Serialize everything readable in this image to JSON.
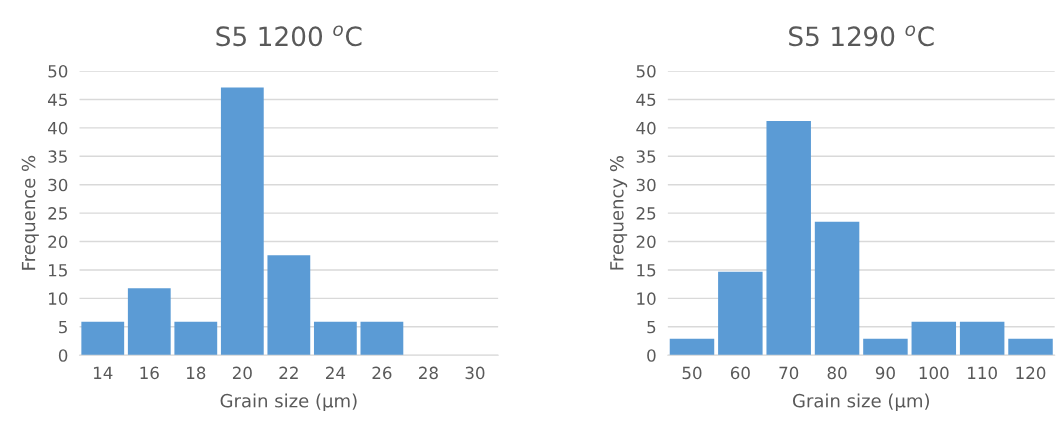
{
  "chart_data": [
    {
      "type": "bar",
      "title": "S5 1200 $^{o}$C",
      "xlabel": "Grain size (µm)",
      "ylabel": "Frequence %",
      "categories": [
        "14",
        "16",
        "18",
        "20",
        "22",
        "24",
        "26",
        "28",
        "30"
      ],
      "values": [
        5.9,
        11.8,
        5.9,
        47.1,
        17.6,
        5.9,
        5.9,
        0,
        0
      ],
      "color": "#5b9bd5",
      "ylim": [
        0,
        50
      ],
      "yticks": [
        0,
        5,
        10,
        15,
        20,
        25,
        30,
        35,
        40,
        45,
        50
      ],
      "grid": "y"
    },
    {
      "type": "bar",
      "title": "S5 1290 $^{o}$C",
      "xlabel": "Grain size (µm)",
      "ylabel": "Frequency %",
      "categories": [
        "50",
        "60",
        "70",
        "80",
        "90",
        "100",
        "110",
        "120"
      ],
      "values": [
        2.9,
        14.7,
        41.2,
        23.5,
        2.9,
        5.9,
        5.9,
        2.9
      ],
      "color": "#5b9bd5",
      "ylim": [
        0,
        50
      ],
      "yticks": [
        0,
        5,
        10,
        15,
        20,
        25,
        30,
        35,
        40,
        45,
        50
      ],
      "grid": "y"
    }
  ]
}
